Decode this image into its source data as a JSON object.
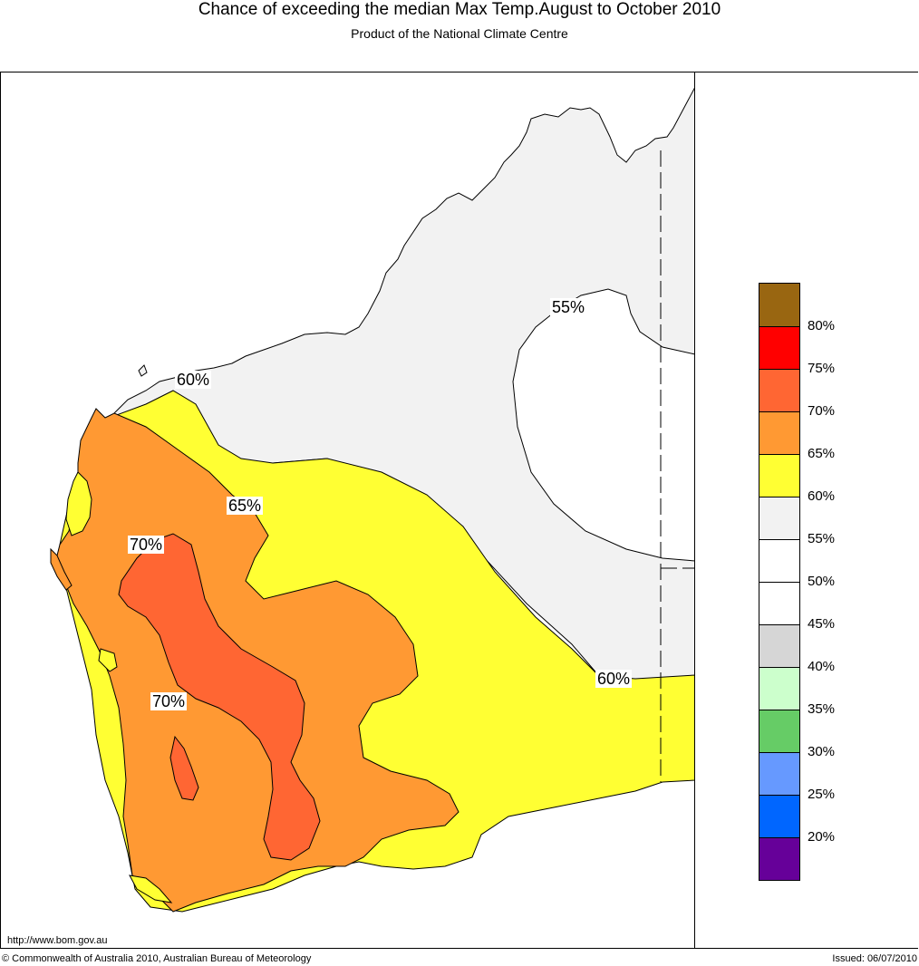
{
  "header": {
    "title": "Chance of exceeding the median Max Temp.August to October 2010",
    "subtitle": "Product of the National Climate Centre"
  },
  "map": {
    "contour_labels": [
      {
        "id": "55",
        "text": "55%"
      },
      {
        "id": "60a",
        "text": "60%"
      },
      {
        "id": "60b",
        "text": "60%"
      },
      {
        "id": "65",
        "text": "65%"
      },
      {
        "id": "70a",
        "text": "70%"
      },
      {
        "id": "70b",
        "text": "70%"
      }
    ],
    "colors": {
      "land_grey": "#f2f2f2",
      "white_zone": "#ffffff",
      "yellow": "#ffff33",
      "orange": "#ff9933",
      "dark_orange": "#ff6633"
    }
  },
  "legend": {
    "swatches": [
      {
        "color": "#996611"
      },
      {
        "color": "#ff0000"
      },
      {
        "color": "#ff6633"
      },
      {
        "color": "#ff9933"
      },
      {
        "color": "#ffff33"
      },
      {
        "color": "#f2f2f2"
      },
      {
        "color": "#ffffff"
      },
      {
        "color": "#ffffff"
      },
      {
        "color": "#d6d6d6"
      },
      {
        "color": "#ccffcc"
      },
      {
        "color": "#66cc66"
      },
      {
        "color": "#6699ff"
      },
      {
        "color": "#0066ff"
      },
      {
        "color": "#660099"
      }
    ],
    "labels": [
      "80%",
      "75%",
      "70%",
      "65%",
      "60%",
      "55%",
      "50%",
      "45%",
      "40%",
      "35%",
      "30%",
      "25%",
      "20%"
    ]
  },
  "footer": {
    "url": "http://www.bom.gov.au",
    "copyright": "© Commonwealth of Australia 2010, Australian Bureau of Meteorology",
    "issued": "Issued: 06/07/2010"
  }
}
